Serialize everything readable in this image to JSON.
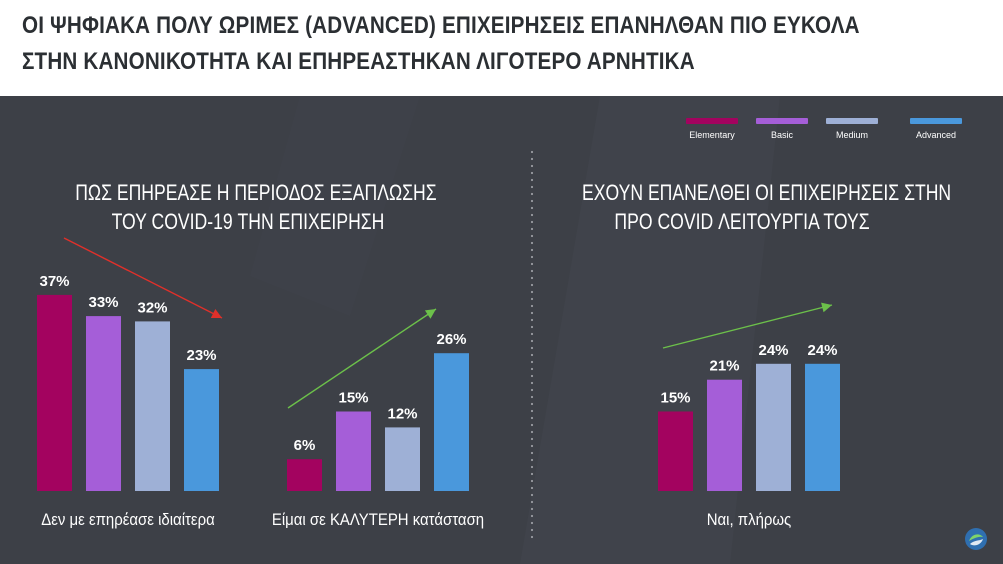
{
  "header": {
    "title_line1": "ΟΙ ΨΗΦΙΑΚΑ ΠΟΛΥ ΩΡΙΜΕΣ (ADVANCED) ΕΠΙΧΕΙΡΗΣΕΙΣ ΕΠΑΝΗΛΘΑΝ ΠΙΟ ΕΥΚΟΛΑ",
    "title_line2": "ΣΤΗΝ ΚΑΝΟΝΙΚΟΤΗΤΑ ΚΑΙ ΕΠΗΡΕΑΣΤΗΚΑΝ ΛΙΓΟΤΕΡΟ ΑΡΝΗΤΙΚΑ"
  },
  "left_section": {
    "title_line1": "ΠΩΣ ΕΠΗΡΕΑΣΕ Η ΠΕΡΙΟΔΟΣ ΕΞΑΠΛΩΣΗΣ",
    "title_line2": "ΤΟΥ COVID-19 ΤΗΝ ΕΠΙΧΕΙΡΗΣΗ"
  },
  "right_section": {
    "title_line1": "ΕΧΟΥΝ ΕΠΑΝΕΛΘΕΙ ΟΙ ΕΠΙΧΕΙΡΗΣΕΙΣ ΣΤΗΝ",
    "title_line2": "ΠΡΟ COVID ΛΕΙΤΟΥΡΓΙΑ ΤΟΥΣ"
  },
  "legend": [
    {
      "label": "Elementary",
      "color": "#a3035f"
    },
    {
      "label": "Basic",
      "color": "#a55ed8"
    },
    {
      "label": "Medium",
      "color": "#9eb0d6"
    },
    {
      "label": "Advanced",
      "color": "#4a98dc"
    }
  ],
  "chart_data": [
    {
      "type": "bar",
      "categories": [
        "Δεν με επηρέασε ιδιαίτερα",
        "Είμαι σε ΚΑΛΥΤΕΡΗ κατάσταση"
      ],
      "series": [
        {
          "name": "Elementary",
          "values": [
            37,
            6
          ]
        },
        {
          "name": "Basic",
          "values": [
            33,
            15
          ]
        },
        {
          "name": "Medium",
          "values": [
            32,
            12
          ]
        },
        {
          "name": "Advanced",
          "values": [
            23,
            26
          ]
        }
      ],
      "value_labels": [
        [
          "37%",
          "33%",
          "32%",
          "23%"
        ],
        [
          "6%",
          "15%",
          "12%",
          "26%"
        ]
      ],
      "trend_arrows": [
        {
          "category": "Δεν με επηρέασε ιδιαίτερα",
          "direction": "down",
          "color": "#e0302a"
        },
        {
          "category": "Είμαι σε ΚΑΛΥΤΕΡΗ κατάσταση",
          "direction": "up",
          "color": "#6cc04a"
        }
      ],
      "grid": false,
      "legend_position": "top-right"
    },
    {
      "type": "bar",
      "categories": [
        "Ναι, πλήρως"
      ],
      "series": [
        {
          "name": "Elementary",
          "values": [
            15
          ]
        },
        {
          "name": "Basic",
          "values": [
            21
          ]
        },
        {
          "name": "Medium",
          "values": [
            24
          ]
        },
        {
          "name": "Advanced",
          "values": [
            24
          ]
        }
      ],
      "value_labels": [
        [
          "15%",
          "21%",
          "24%",
          "24%"
        ]
      ],
      "trend_arrows": [
        {
          "category": "Ναι, πλήρως",
          "direction": "up",
          "color": "#6cc04a"
        }
      ],
      "grid": false,
      "legend_position": "top-right"
    }
  ]
}
